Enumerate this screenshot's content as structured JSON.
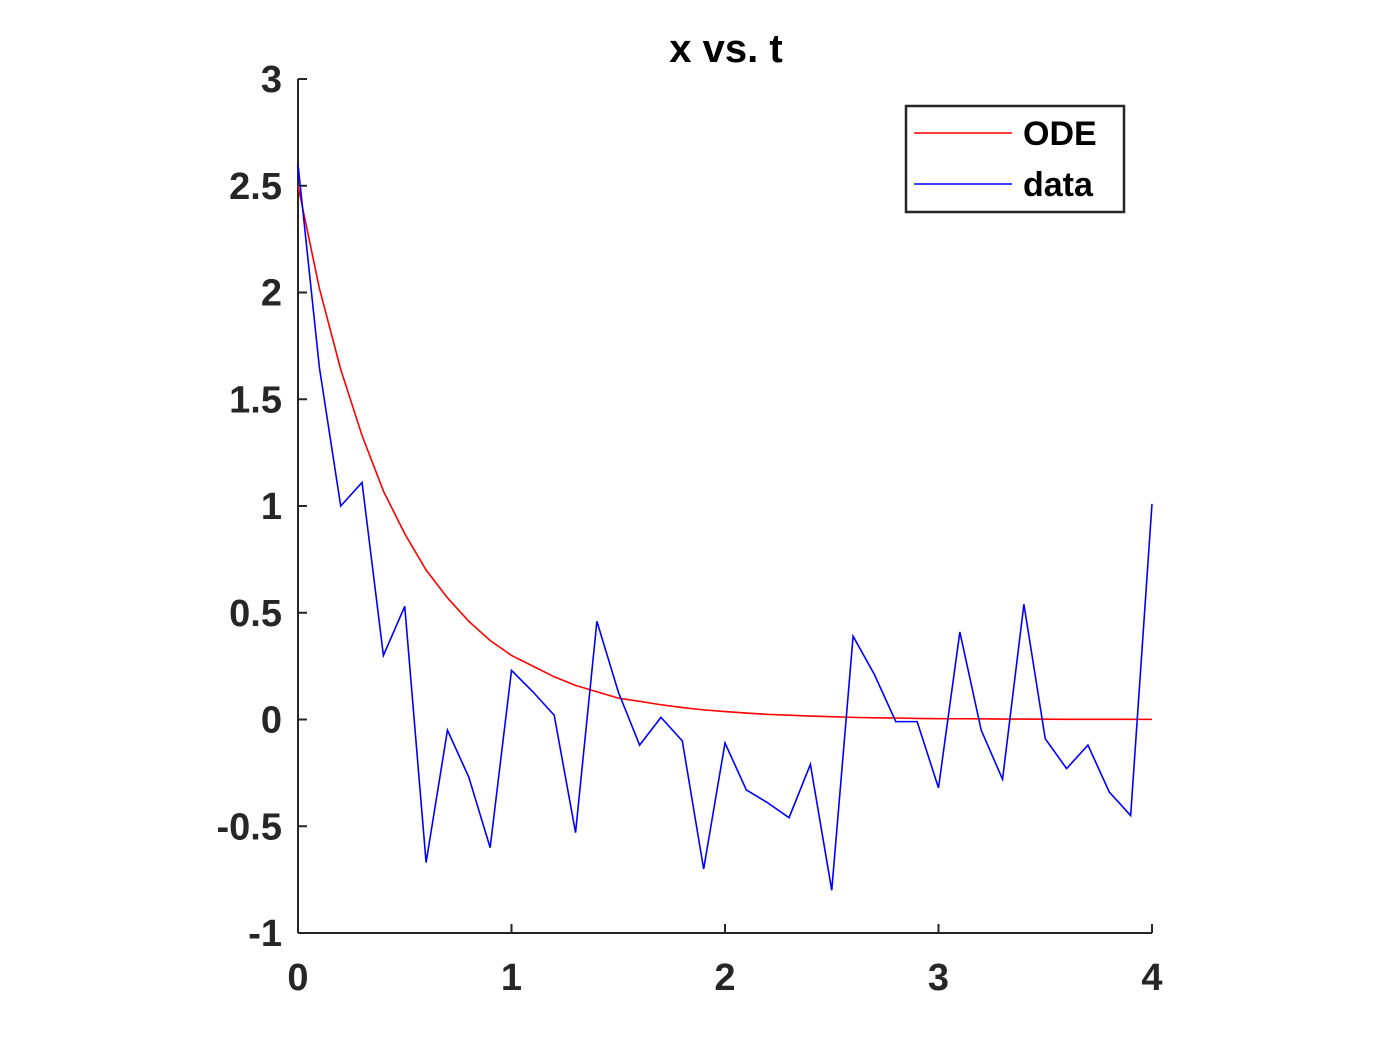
{
  "chart_data": {
    "type": "line",
    "title": "x vs. t",
    "xlabel": "",
    "ylabel": "",
    "xlim": [
      0,
      4
    ],
    "ylim": [
      -1,
      3
    ],
    "xticks": [
      0,
      1,
      2,
      3,
      4
    ],
    "yticks": [
      -1,
      -0.5,
      0,
      0.5,
      1,
      1.5,
      2,
      2.5,
      3
    ],
    "grid": false,
    "legend_position": "top-right",
    "x": [
      0,
      0.1,
      0.2,
      0.3,
      0.4,
      0.5,
      0.6,
      0.7,
      0.8,
      0.9,
      1.0,
      1.1,
      1.2,
      1.3,
      1.4,
      1.5,
      1.6,
      1.7,
      1.8,
      1.9,
      2.0,
      2.1,
      2.2,
      2.3,
      2.4,
      2.5,
      2.6,
      2.7,
      2.8,
      2.9,
      3.0,
      3.1,
      3.2,
      3.3,
      3.4,
      3.5,
      3.6,
      3.7,
      3.8,
      3.9,
      4.0
    ],
    "series": [
      {
        "name": "ODE",
        "color": "#ff0000",
        "values": [
          2.5,
          2.02,
          1.64,
          1.33,
          1.07,
          0.87,
          0.7,
          0.57,
          0.46,
          0.37,
          0.3,
          0.25,
          0.2,
          0.16,
          0.13,
          0.1,
          0.085,
          0.069,
          0.056,
          0.045,
          0.037,
          0.03,
          0.024,
          0.02,
          0.016,
          0.013,
          0.01,
          0.008,
          0.007,
          0.005,
          0.004,
          0.0035,
          0.003,
          0.002,
          0.002,
          0.0015,
          0.001,
          0.001,
          0.001,
          0.0007,
          0.0006
        ]
      },
      {
        "name": "data",
        "color": "#0000ff",
        "values": [
          2.6,
          1.65,
          1.0,
          1.11,
          0.3,
          0.53,
          -0.67,
          -0.05,
          -0.27,
          -0.6,
          0.23,
          0.13,
          0.02,
          -0.53,
          0.46,
          0.13,
          -0.12,
          0.01,
          -0.1,
          -0.7,
          -0.11,
          -0.33,
          -0.39,
          -0.46,
          -0.21,
          -0.8,
          0.39,
          0.21,
          -0.01,
          -0.01,
          -0.32,
          0.41,
          -0.05,
          -0.28,
          0.54,
          -0.09,
          -0.23,
          -0.12,
          -0.34,
          -0.45,
          1.01
        ]
      }
    ]
  }
}
